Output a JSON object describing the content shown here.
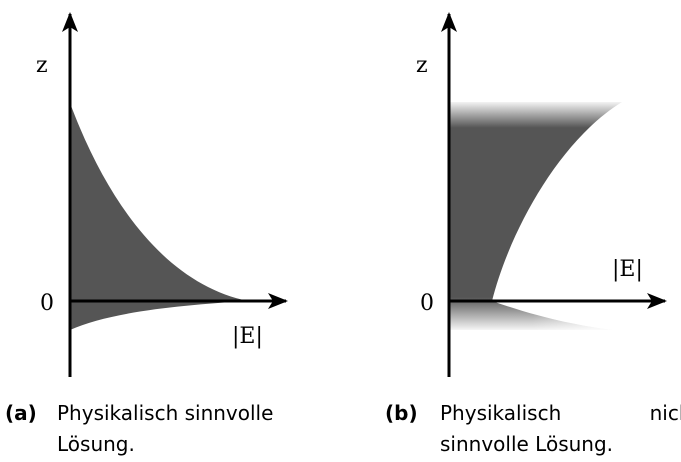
{
  "panels": [
    {
      "y_axis": "z",
      "origin": "0",
      "x_axis": "|E|",
      "label": "(a)",
      "caption": [
        "Physikalisch sinnvolle",
        "Lösung."
      ]
    },
    {
      "y_axis": "z",
      "origin": "0",
      "x_axis": "|E|",
      "label": "(b)",
      "caption": [
        "Physikalisch nicht",
        "sinnvolle Lösung."
      ]
    }
  ]
}
